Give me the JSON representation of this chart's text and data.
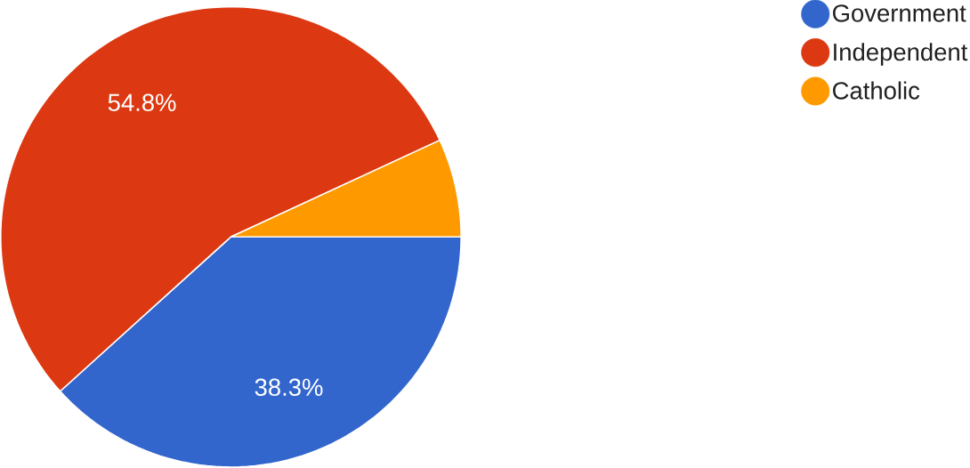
{
  "chart_data": {
    "type": "pie",
    "categories": [
      "Government",
      "Independent",
      "Catholic"
    ],
    "values": [
      38.3,
      54.8,
      6.9
    ],
    "value_labels": [
      "38.3%",
      "54.8%",
      null
    ],
    "colors": [
      "#3366cc",
      "#dc3912",
      "#ff9900"
    ],
    "legend": "top right"
  }
}
